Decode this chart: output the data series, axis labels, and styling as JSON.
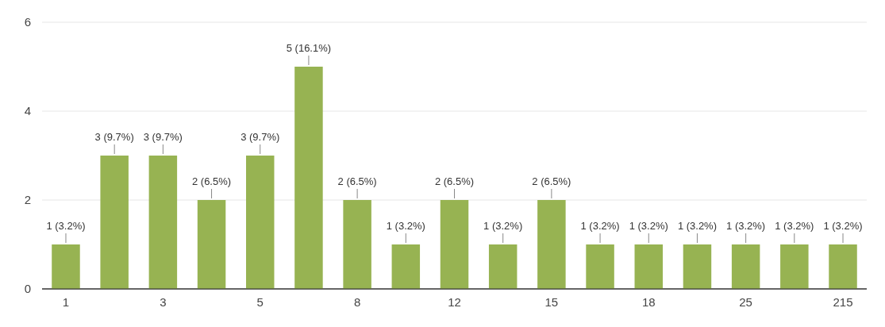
{
  "chart_data": {
    "type": "bar",
    "categories": [
      "1",
      null,
      "3",
      null,
      "5",
      null,
      "8",
      null,
      "12",
      null,
      "15",
      null,
      "18",
      null,
      "25",
      null,
      "215"
    ],
    "values": [
      1,
      3,
      3,
      2,
      3,
      5,
      2,
      1,
      2,
      1,
      2,
      1,
      1,
      1,
      1,
      1,
      1
    ],
    "value_labels": [
      "1 (3.2%)",
      "3 (9.7%)",
      "3 (9.7%)",
      "2 (6.5%)",
      "3 (9.7%)",
      "5 (16.1%)",
      "2 (6.5%)",
      "1 (3.2%)",
      "2 (6.5%)",
      "1 (3.2%)",
      "2 (6.5%)",
      "1 (3.2%)",
      "1 (3.2%)",
      "1 (3.2%)",
      "1 (3.2%)",
      "1 (3.2%)",
      "1 (3.2%)"
    ],
    "color": "#97b352",
    "ylim": [
      0,
      6
    ],
    "yticks": [
      0,
      2,
      4,
      6
    ],
    "grid": "y"
  }
}
